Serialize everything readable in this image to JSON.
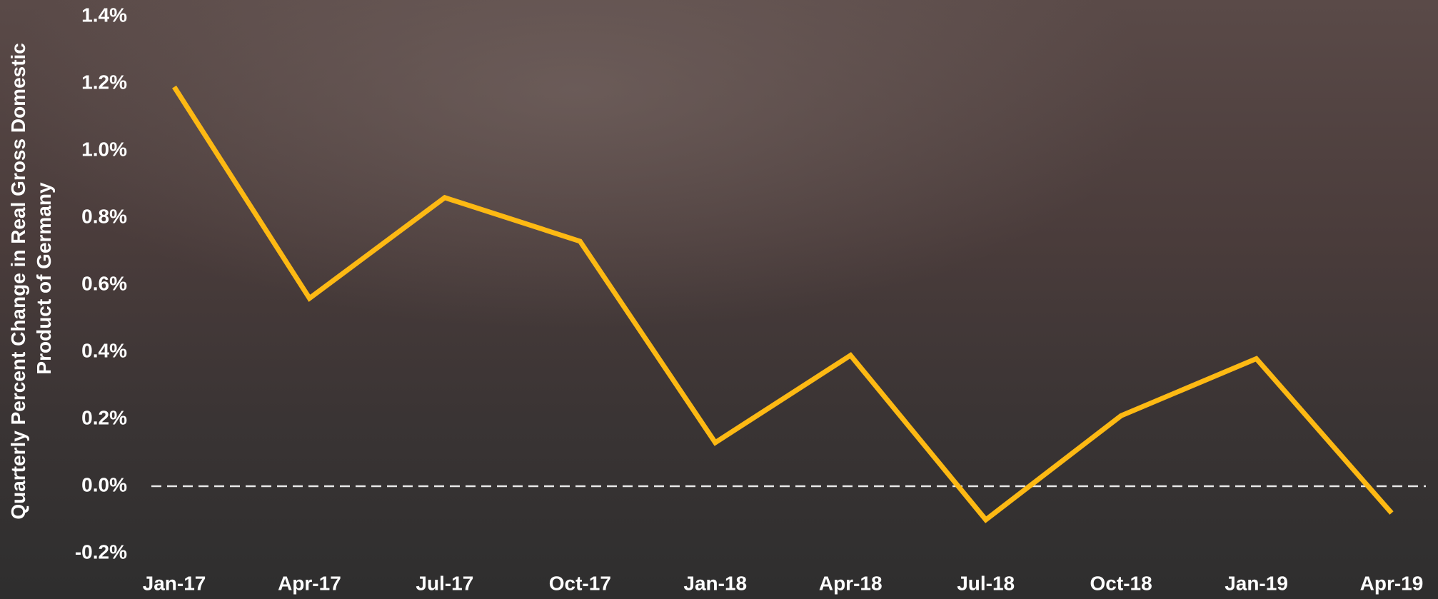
{
  "chart_data": {
    "type": "line",
    "y_label": [
      "Quarterly Percent Change in Real Gross Domestic",
      "Product of Germany"
    ],
    "categories": [
      "Jan-17",
      "Apr-17",
      "Jul-17",
      "Oct-17",
      "Jan-18",
      "Apr-18",
      "Jul-18",
      "Oct-18",
      "Jan-19",
      "Apr-19"
    ],
    "series": [
      {
        "color": "#fdb913",
        "values": [
          1.19,
          0.56,
          0.86,
          0.73,
          0.13,
          0.39,
          -0.1,
          0.21,
          0.38,
          -0.08
        ]
      }
    ],
    "ylim": [
      -0.2,
      1.4
    ],
    "yticks": [
      {
        "value": -0.2,
        "label": "-0.2%"
      },
      {
        "value": 0.0,
        "label": "0.0%"
      },
      {
        "value": 0.2,
        "label": "0.2%"
      },
      {
        "value": 0.4,
        "label": "0.4%"
      },
      {
        "value": 0.6,
        "label": "0.6%"
      },
      {
        "value": 0.8,
        "label": "0.8%"
      },
      {
        "value": 1.0,
        "label": "1.0%"
      },
      {
        "value": 1.2,
        "label": "1.2%"
      },
      {
        "value": 1.4,
        "label": "1.4%"
      }
    ],
    "zero_line": true
  }
}
